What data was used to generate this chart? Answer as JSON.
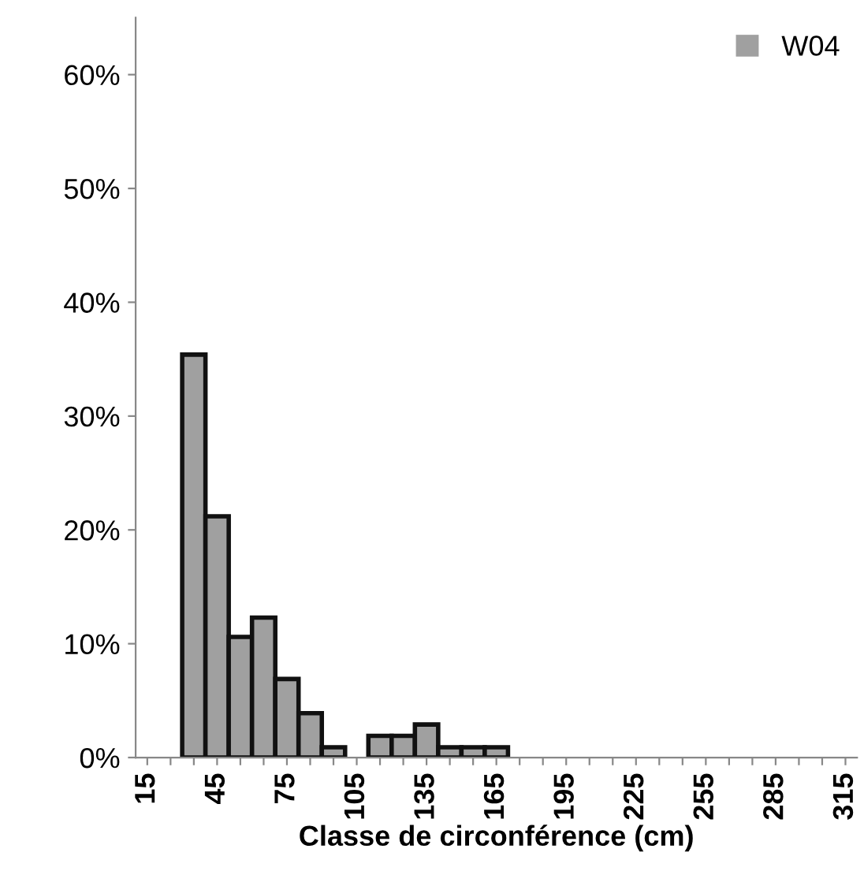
{
  "chart_data": {
    "type": "bar",
    "xlabel": "Classe de circonférence (cm)",
    "categories": [
      "15",
      null,
      null,
      "45",
      null,
      null,
      "75",
      null,
      null,
      "105",
      null,
      null,
      "135",
      null,
      null,
      "165",
      null,
      null,
      "195",
      null,
      null,
      "225",
      null,
      null,
      "255",
      null,
      null,
      "285",
      null,
      null,
      "315"
    ],
    "series": [
      {
        "name": "W04",
        "color": "#a0a0a0",
        "values": [
          0,
          0,
          35.4,
          21.2,
          10.6,
          12.3,
          6.9,
          3.9,
          0.9,
          0,
          1.9,
          1.9,
          2.9,
          0.9,
          0.9,
          0.9,
          0,
          0,
          0,
          0,
          0,
          0,
          0,
          0,
          0,
          0,
          0,
          0,
          0,
          0,
          0
        ]
      }
    ],
    "ylim": [
      0,
      65
    ],
    "yticks": [
      {
        "value": 0,
        "label": "0%"
      },
      {
        "value": 10,
        "label": "10%"
      },
      {
        "value": 20,
        "label": "20%"
      },
      {
        "value": 30,
        "label": "30%"
      },
      {
        "value": 40,
        "label": "40%"
      },
      {
        "value": 50,
        "label": "50%"
      },
      {
        "value": 60,
        "label": "60%"
      }
    ],
    "grid": false,
    "legend": "top right"
  }
}
